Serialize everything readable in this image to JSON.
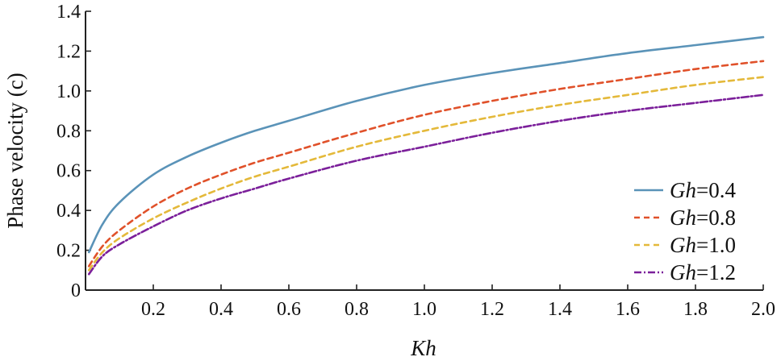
{
  "chart_data": {
    "type": "line",
    "title": "",
    "xlabel": "Kh",
    "ylabel": "Phase velocity (c)",
    "xlim": [
      0.0,
      2.0
    ],
    "ylim": [
      0.0,
      1.4
    ],
    "xticks": [
      {
        "value": 0.2,
        "label": "0.2"
      },
      {
        "value": 0.4,
        "label": "0.4"
      },
      {
        "value": 0.6,
        "label": "0.6"
      },
      {
        "value": 0.8,
        "label": "0.8"
      },
      {
        "value": 1.0,
        "label": "1.0"
      },
      {
        "value": 1.2,
        "label": "1.2"
      },
      {
        "value": 1.4,
        "label": "1.4"
      },
      {
        "value": 1.6,
        "label": "1.6"
      },
      {
        "value": 1.8,
        "label": "1.8"
      },
      {
        "value": 2.0,
        "label": "2.0"
      }
    ],
    "yticks": [
      {
        "value": 0.0,
        "label": "0"
      },
      {
        "value": 0.2,
        "label": "0.2"
      },
      {
        "value": 0.4,
        "label": "0.4"
      },
      {
        "value": 0.6,
        "label": "0.6"
      },
      {
        "value": 0.8,
        "label": "0.8"
      },
      {
        "value": 1.0,
        "label": "1.0"
      },
      {
        "value": 1.2,
        "label": "1.2"
      },
      {
        "value": 1.4,
        "label": "1.4"
      }
    ],
    "grid": false,
    "legend_position": "bottom-right",
    "series": [
      {
        "name": "Gh=0.4",
        "legend_italic": "Gh",
        "legend_rest": "=0.4",
        "color": "#5a93b8",
        "style": "solid",
        "x": [
          0.01,
          0.05,
          0.1,
          0.2,
          0.3,
          0.4,
          0.5,
          0.6,
          0.8,
          1.0,
          1.2,
          1.4,
          1.6,
          1.8,
          2.0
        ],
        "y": [
          0.19,
          0.33,
          0.44,
          0.58,
          0.67,
          0.74,
          0.8,
          0.85,
          0.95,
          1.03,
          1.09,
          1.14,
          1.19,
          1.23,
          1.27
        ]
      },
      {
        "name": "Gh=0.8",
        "legend_italic": "Gh",
        "legend_rest": "=0.8",
        "color": "#e0512a",
        "style": "dashed",
        "x": [
          0.01,
          0.05,
          0.1,
          0.2,
          0.3,
          0.4,
          0.5,
          0.6,
          0.8,
          1.0,
          1.2,
          1.4,
          1.6,
          1.8,
          2.0
        ],
        "y": [
          0.12,
          0.22,
          0.3,
          0.42,
          0.51,
          0.58,
          0.64,
          0.69,
          0.79,
          0.88,
          0.95,
          1.01,
          1.06,
          1.11,
          1.15
        ]
      },
      {
        "name": "Gh=1.0",
        "legend_italic": "Gh",
        "legend_rest": "=1.0",
        "color": "#e4b93a",
        "style": "dashed",
        "x": [
          0.01,
          0.05,
          0.1,
          0.2,
          0.3,
          0.4,
          0.5,
          0.6,
          0.8,
          1.0,
          1.2,
          1.4,
          1.6,
          1.8,
          2.0
        ],
        "y": [
          0.1,
          0.19,
          0.26,
          0.36,
          0.44,
          0.51,
          0.57,
          0.62,
          0.72,
          0.8,
          0.87,
          0.93,
          0.98,
          1.03,
          1.07
        ]
      },
      {
        "name": "Gh=1.2",
        "legend_italic": "Gh",
        "legend_rest": "=1.2",
        "color": "#7b1f9a",
        "style": "dashdot",
        "x": [
          0.01,
          0.05,
          0.1,
          0.2,
          0.3,
          0.4,
          0.5,
          0.6,
          0.8,
          1.0,
          1.2,
          1.4,
          1.6,
          1.8,
          2.0
        ],
        "y": [
          0.08,
          0.17,
          0.23,
          0.32,
          0.4,
          0.46,
          0.51,
          0.56,
          0.65,
          0.72,
          0.79,
          0.85,
          0.9,
          0.94,
          0.98
        ]
      }
    ]
  }
}
